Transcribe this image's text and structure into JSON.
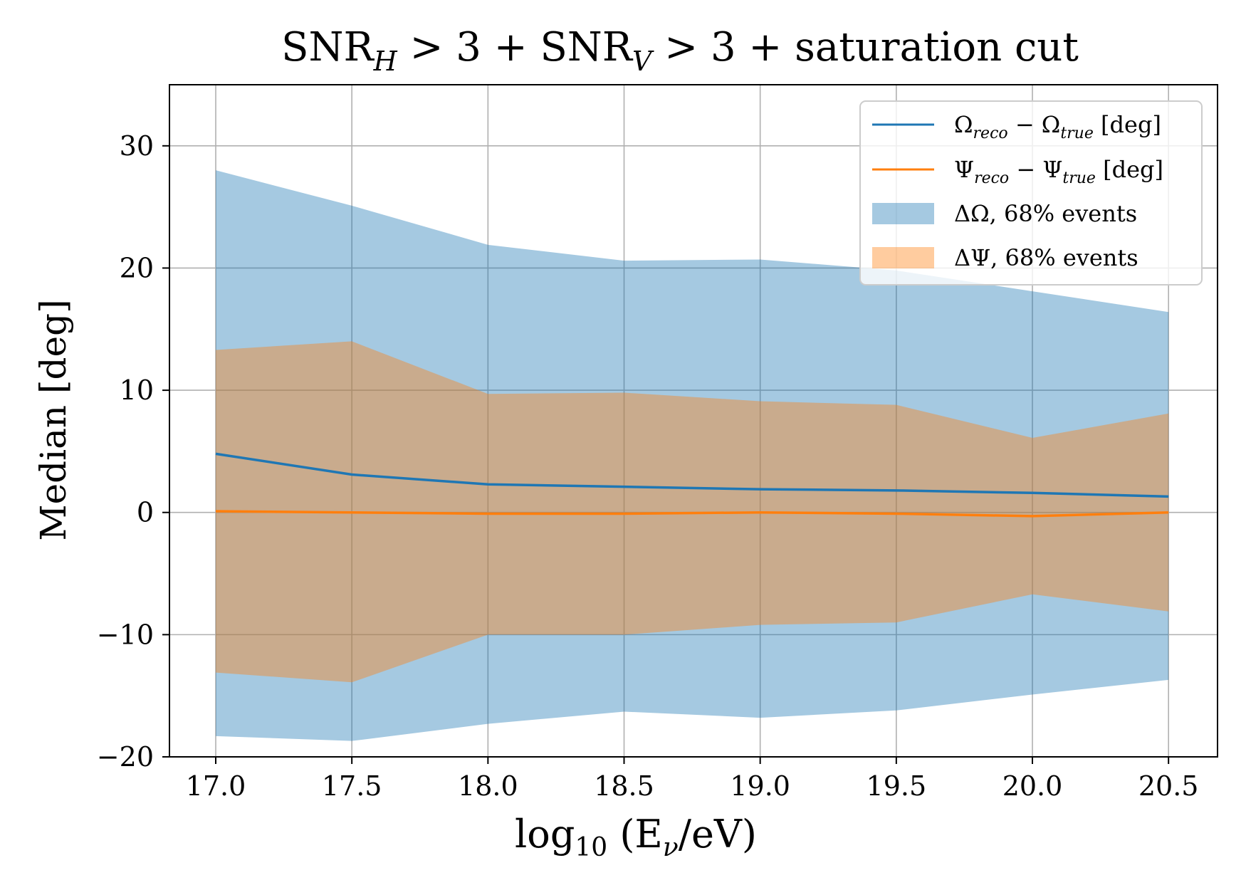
{
  "chart_data": {
    "type": "line",
    "title": {
      "base1": "SNR",
      "sub1": "H",
      "mid": " > 3 + SNR",
      "sub2": "V",
      "tail": " > 3 + saturation cut"
    },
    "xlabel": {
      "prefix": "log",
      "sub": "10",
      "body": " (E",
      "nu": "ν",
      "tail": "/eV)"
    },
    "ylabel": "Median [deg]",
    "x": [
      17.0,
      17.5,
      18.0,
      18.5,
      19.0,
      19.5,
      20.0,
      20.5
    ],
    "xlim": [
      16.83,
      20.68
    ],
    "ylim": [
      -20,
      35
    ],
    "xticks": [
      17.0,
      17.5,
      18.0,
      18.5,
      19.0,
      19.5,
      20.0,
      20.5
    ],
    "xtick_labels": [
      "17.0",
      "17.5",
      "18.0",
      "18.5",
      "19.0",
      "19.5",
      "20.0",
      "20.5"
    ],
    "yticks": [
      -20,
      -10,
      0,
      10,
      20,
      30
    ],
    "ytick_labels": [
      "−20",
      "−10",
      "0",
      "10",
      "20",
      "30"
    ],
    "grid": true,
    "legend_position": "top-right",
    "series": [
      {
        "name": "Ω_reco − Ω_true [deg]",
        "label_main": "Ω",
        "label_sub1": "reco",
        "label_mid": " − Ω",
        "label_sub2": "true",
        "label_tail": " [deg]",
        "color": "#1f77b4",
        "kind": "line",
        "values": [
          4.8,
          3.1,
          2.3,
          2.1,
          1.9,
          1.8,
          1.6,
          1.3
        ]
      },
      {
        "name": "Ψ_reco − Ψ_true [deg]",
        "label_main": "Ψ",
        "label_sub1": "reco",
        "label_mid": " − Ψ",
        "label_sub2": "true",
        "label_tail": " [deg]",
        "color": "#ff7f0e",
        "kind": "line",
        "values": [
          0.1,
          0.0,
          -0.1,
          -0.1,
          0.0,
          -0.1,
          -0.3,
          0.0
        ]
      }
    ],
    "bands": [
      {
        "name": "ΔΩ, 68% events",
        "color": "#1f77b4",
        "alpha": 0.4,
        "lower": [
          -18.3,
          -18.7,
          -17.3,
          -16.3,
          -16.8,
          -16.2,
          -14.9,
          -13.7
        ],
        "upper": [
          28.0,
          25.1,
          21.9,
          20.6,
          20.7,
          19.8,
          18.1,
          16.4
        ]
      },
      {
        "name": "ΔΨ, 68% events",
        "color": "#ff7f0e",
        "alpha": 0.4,
        "lower": [
          -13.1,
          -13.9,
          -10.0,
          -10.0,
          -9.2,
          -9.0,
          -6.7,
          -8.1
        ],
        "upper": [
          13.3,
          14.0,
          9.7,
          9.8,
          9.1,
          8.8,
          6.1,
          8.1
        ]
      }
    ]
  }
}
